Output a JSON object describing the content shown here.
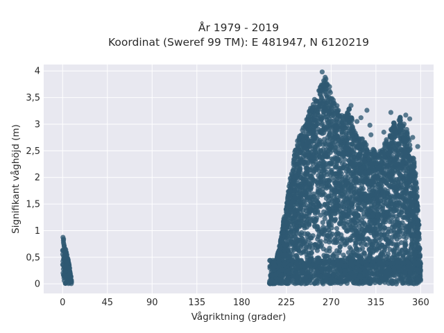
{
  "chart_data": {
    "type": "scatter",
    "title": "År 1979 - 2019",
    "subtitle": "Koordinat (Sweref 99 TM): E 481947, N 6120219",
    "xlabel": "Vågriktning (grader)",
    "ylabel": "Signifikant våghöjd (m)",
    "xlim": [
      -19,
      373
    ],
    "ylim": [
      -0.18,
      4.12
    ],
    "x_ticks": [
      0,
      45,
      90,
      135,
      180,
      225,
      270,
      315,
      360
    ],
    "y_ticks": [
      0,
      0.5,
      1,
      1.5,
      2,
      2.5,
      3,
      3.5,
      4
    ],
    "y_tick_labels": [
      "0",
      "0,5",
      "1",
      "1,5",
      "2",
      "2,5",
      "3",
      "3,5",
      "4"
    ],
    "grid": true,
    "colors": {
      "marker": "#2e5872",
      "plot_bg": "#e8e8f0",
      "grid": "#ffffff"
    },
    "series": [
      {
        "values_envelope": [
          [
            0,
            0.9
          ],
          [
            1,
            0.85
          ],
          [
            2,
            0.72
          ],
          [
            4,
            0.6
          ],
          [
            6,
            0.42
          ],
          [
            8,
            0.2
          ],
          [
            9,
            0.05
          ]
        ],
        "values": [
          [
            208,
            0.02
          ],
          [
            210,
            0.05
          ],
          [
            213,
            0.2
          ],
          [
            216,
            0.55
          ],
          [
            219,
            0.8
          ],
          [
            222,
            1.2
          ],
          [
            225,
            1.5
          ],
          [
            228,
            1.9
          ],
          [
            231,
            2.2
          ],
          [
            234,
            2.55
          ],
          [
            237,
            2.75
          ],
          [
            240,
            2.85
          ],
          [
            243,
            3.0
          ],
          [
            246,
            3.15
          ],
          [
            249,
            3.3
          ],
          [
            252,
            3.4
          ],
          [
            255,
            3.55
          ],
          [
            258,
            3.7
          ],
          [
            261,
            3.75
          ],
          [
            264,
            3.98
          ],
          [
            267,
            3.8
          ],
          [
            270,
            3.6
          ],
          [
            273,
            3.45
          ],
          [
            276,
            3.35
          ],
          [
            279,
            3.25
          ],
          [
            282,
            3.2
          ],
          [
            285,
            3.15
          ],
          [
            288,
            3.3
          ],
          [
            291,
            3.1
          ],
          [
            294,
            2.85
          ],
          [
            297,
            2.8
          ],
          [
            300,
            2.75
          ],
          [
            303,
            2.72
          ],
          [
            306,
            2.6
          ],
          [
            309,
            2.45
          ],
          [
            312,
            2.55
          ],
          [
            315,
            2.5
          ],
          [
            318,
            2.45
          ],
          [
            321,
            2.55
          ],
          [
            324,
            2.65
          ],
          [
            327,
            2.85
          ],
          [
            330,
            2.9
          ],
          [
            333,
            3.05
          ],
          [
            336,
            2.9
          ],
          [
            339,
            3.15
          ],
          [
            342,
            3.05
          ],
          [
            345,
            2.95
          ],
          [
            348,
            2.75
          ],
          [
            351,
            2.5
          ],
          [
            354,
            2.3
          ],
          [
            357,
            1.6
          ],
          [
            359,
            0.9
          ],
          [
            360,
            0.2
          ]
        ]
      }
    ],
    "outliers": [
      [
        261,
        3.98
      ],
      [
        264,
        3.72
      ],
      [
        290,
        3.35
      ],
      [
        306,
        3.26
      ],
      [
        300,
        3.12
      ],
      [
        309,
        2.98
      ],
      [
        323,
        2.85
      ],
      [
        330,
        3.22
      ],
      [
        334,
        2.88
      ],
      [
        339,
        3.08
      ],
      [
        343,
        2.72
      ],
      [
        346,
        2.9
      ],
      [
        352,
        2.75
      ],
      [
        349,
        3.1
      ],
      [
        345,
        3.17
      ],
      [
        357,
        2.58
      ],
      [
        310,
        2.8
      ],
      [
        296,
        3.05
      ]
    ]
  }
}
